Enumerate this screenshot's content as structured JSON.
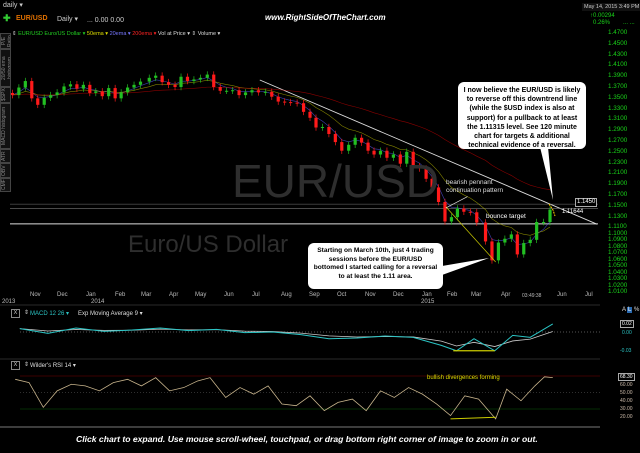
{
  "header": {
    "timeframe": "daily ▾",
    "symbol": "EUR/USD",
    "period": "Daily ▾",
    "ohlc": "... 0.00 0.00",
    "watermark": "www.RightSideOfTheChart.com",
    "datetime": "May 14, 2015 3:49 PM",
    "change": "↑0.00294",
    "change_pct": "0.26%",
    "change_dots": "... ..."
  },
  "legend": {
    "symbol": "EUR/USD Euro/US Dollar ▾",
    "ema50": "50ema ▾",
    "ema20": "20ema ▾",
    "ema200": "200ema ▾",
    "vap": "Vol at Price ▾",
    "volume": "Volume ▾"
  },
  "side_tabs": [
    "P/E Ratio",
    "20/50 ema histogram",
    "$SPX",
    "MACD histogram",
    "ATR",
    "OBV",
    "CMF"
  ],
  "price_axis": [
    "1.4700",
    "1.4500",
    "1.4300",
    "1.4100",
    "1.3900",
    "1.3700",
    "1.3500",
    "1.3300",
    "1.3100",
    "1.2900",
    "1.2700",
    "1.2500",
    "1.2300",
    "1.2100",
    "1.1900",
    "1.1700",
    "1.1500",
    "1.1300",
    "1.1100",
    "1.1000",
    "1.0900",
    "1.0800",
    "1.0700",
    "1.0600",
    "1.0500",
    "1.0400",
    "1.0300",
    "1.0200",
    "1.0100"
  ],
  "price_tags": {
    "last": "1.1450",
    "level": "1.11644"
  },
  "watermark": {
    "symbol": "EUR/USD",
    "name": "Euro/US Dollar"
  },
  "annotations": {
    "callout_top": "I now believe the EUR/USD is likely to reverse off this downtrend line (while the $USD index is also at support) for a pullback to at least the 1.11315 level. See 120 minute chart for targets & additional technical evidence of a reversal.",
    "callout_bottom": "Starting on March 10th, just 4 trading sessions before the EUR/USD bottomed I started calling for a reversal to at least the 1.11 area.",
    "pennant": "bearish pennant",
    "pennant2": "continuation pattern",
    "bounce": "bounce target",
    "rsi_note": "bullish divergences forming"
  },
  "date_axis": {
    "months": [
      "Nov",
      "Dec",
      "Jan",
      "Feb",
      "Mar",
      "Apr",
      "May",
      "Jun",
      "Jul",
      "Aug",
      "Sep",
      "Oct",
      "Nov",
      "Dec",
      "Jan",
      "Feb",
      "Mar",
      "Apr",
      "Jun",
      "Jul"
    ],
    "years": [
      "2013",
      "2014",
      "2015"
    ],
    "time": "03:49:38",
    "scale_buttons": [
      "A",
      "L",
      "%"
    ]
  },
  "macd_panel": {
    "close": "X",
    "title": "MACD 12 26 ▾",
    "overlay": "Exp Moving Average 9 ▾",
    "labels": [
      "0.02",
      "0.00",
      "-0.03"
    ]
  },
  "rsi_panel": {
    "close": "X",
    "title": "Wilder's RSI 14 ▾",
    "labels": [
      "68.30",
      "60.00",
      "50.00",
      "40.00",
      "30.00",
      "20.00"
    ]
  },
  "caption": "Click chart to expand. Use mouse scroll-wheel, touchpad, or drag bottom right corner of image to zoom in or out.",
  "chart_data": {
    "type": "line",
    "title": "EUR/USD Euro/US Dollar Daily",
    "ylim": [
      1.01,
      1.47
    ],
    "colors": {
      "up": "#22c022",
      "down": "#ff1a1a",
      "ema50": "#b8b800",
      "ema20": "#5a5aff",
      "ema200": "#c00000",
      "macd": "#2bc4c4",
      "signal": "#cccccc",
      "rsi": "#c8b48c"
    },
    "price": {
      "dates": [
        "2013-10-07",
        "2013-10-14",
        "2013-10-21",
        "2013-10-28",
        "2013-11-04",
        "2013-11-11",
        "2013-11-18",
        "2013-11-25",
        "2013-12-02",
        "2013-12-09",
        "2013-12-16",
        "2013-12-23",
        "2013-12-30",
        "2014-01-06",
        "2014-01-13",
        "2014-01-20",
        "2014-01-27",
        "2014-02-03",
        "2014-02-10",
        "2014-02-17",
        "2014-02-24",
        "2014-03-03",
        "2014-03-10",
        "2014-03-17",
        "2014-03-24",
        "2014-03-31",
        "2014-04-07",
        "2014-04-14",
        "2014-04-21",
        "2014-04-28",
        "2014-05-05",
        "2014-05-12",
        "2014-05-19",
        "2014-05-26",
        "2014-06-02",
        "2014-06-09",
        "2014-06-16",
        "2014-06-23",
        "2014-06-30",
        "2014-07-07",
        "2014-07-14",
        "2014-07-21",
        "2014-07-28",
        "2014-08-04",
        "2014-08-11",
        "2014-08-18",
        "2014-08-25",
        "2014-09-01",
        "2014-09-08",
        "2014-09-15",
        "2014-09-22",
        "2014-09-29",
        "2014-10-06",
        "2014-10-13",
        "2014-10-20",
        "2014-10-27",
        "2014-11-03",
        "2014-11-10",
        "2014-11-17",
        "2014-11-24",
        "2014-12-01",
        "2014-12-08",
        "2014-12-15",
        "2014-12-22",
        "2014-12-29",
        "2015-01-05",
        "2015-01-12",
        "2015-01-19",
        "2015-01-26",
        "2015-02-02",
        "2015-02-09",
        "2015-02-16",
        "2015-02-23",
        "2015-03-02",
        "2015-03-09",
        "2015-03-16",
        "2015-03-23",
        "2015-03-30",
        "2015-04-06",
        "2015-04-13",
        "2015-04-20",
        "2015-04-27",
        "2015-05-04",
        "2015-05-11"
      ],
      "close": [
        1.355,
        1.369,
        1.381,
        1.349,
        1.337,
        1.35,
        1.355,
        1.36,
        1.371,
        1.375,
        1.367,
        1.374,
        1.359,
        1.362,
        1.353,
        1.368,
        1.349,
        1.36,
        1.369,
        1.374,
        1.38,
        1.387,
        1.391,
        1.379,
        1.374,
        1.37,
        1.389,
        1.381,
        1.384,
        1.387,
        1.393,
        1.37,
        1.363,
        1.363,
        1.364,
        1.355,
        1.36,
        1.364,
        1.36,
        1.361,
        1.352,
        1.343,
        1.342,
        1.341,
        1.34,
        1.324,
        1.313,
        1.295,
        1.296,
        1.283,
        1.268,
        1.252,
        1.263,
        1.276,
        1.267,
        1.252,
        1.245,
        1.252,
        1.239,
        1.245,
        1.228,
        1.25,
        1.223,
        1.219,
        1.2,
        1.184,
        1.157,
        1.121,
        1.129,
        1.145,
        1.139,
        1.138,
        1.119,
        1.084,
        1.049,
        1.082,
        1.089,
        1.097,
        1.06,
        1.081,
        1.087,
        1.12,
        1.12,
        1.143
      ]
    },
    "trendlines": [
      {
        "name": "downtrend",
        "from": [
          "2014-07-01",
          1.383
        ],
        "to": [
          "2015-07-01",
          1.116
        ]
      },
      {
        "name": "resistance-1",
        "level": 1.1531
      },
      {
        "name": "resistance-2",
        "level": 1.1448
      },
      {
        "name": "bounce-target",
        "level": 1.11644
      }
    ],
    "macd": {
      "dates": [
        "2013-10-15",
        "2013-11-15",
        "2013-12-15",
        "2014-01-15",
        "2014-02-15",
        "2014-03-15",
        "2014-04-15",
        "2014-05-15",
        "2014-06-15",
        "2014-07-15",
        "2014-08-15",
        "2014-09-15",
        "2014-10-15",
        "2014-11-15",
        "2014-12-15",
        "2015-01-15",
        "2015-02-01",
        "2015-02-20",
        "2015-03-12",
        "2015-04-01",
        "2015-04-20",
        "2015-05-14"
      ],
      "values": [
        0.005,
        -0.002,
        0.006,
        0.001,
        0.003,
        0.006,
        0.002,
        0.004,
        -0.001,
        0.0,
        -0.004,
        -0.01,
        -0.009,
        -0.006,
        -0.008,
        -0.02,
        -0.028,
        -0.01,
        -0.028,
        -0.005,
        -0.008,
        0.012
      ]
    },
    "rsi": {
      "dates": [
        "2013-10-10",
        "2013-10-25",
        "2013-11-10",
        "2013-11-25",
        "2013-12-10",
        "2013-12-25",
        "2014-01-10",
        "2014-01-25",
        "2014-02-10",
        "2014-02-25",
        "2014-03-10",
        "2014-03-25",
        "2014-04-10",
        "2014-04-25",
        "2014-05-08",
        "2014-05-25",
        "2014-06-10",
        "2014-06-25",
        "2014-07-10",
        "2014-07-25",
        "2014-08-10",
        "2014-08-25",
        "2014-09-10",
        "2014-09-25",
        "2014-10-10",
        "2014-10-25",
        "2014-11-10",
        "2014-11-25",
        "2014-12-10",
        "2014-12-25",
        "2015-01-10",
        "2015-01-25",
        "2015-02-10",
        "2015-02-25",
        "2015-03-13",
        "2015-03-25",
        "2015-04-10",
        "2015-04-25",
        "2015-05-05",
        "2015-05-14"
      ],
      "values": [
        66,
        62,
        32,
        52,
        60,
        58,
        52,
        62,
        66,
        58,
        68,
        52,
        56,
        64,
        68,
        44,
        56,
        48,
        58,
        36,
        34,
        46,
        28,
        38,
        42,
        28,
        52,
        44,
        56,
        48,
        36,
        22,
        46,
        42,
        18,
        54,
        40,
        58,
        69,
        68
      ]
    }
  }
}
